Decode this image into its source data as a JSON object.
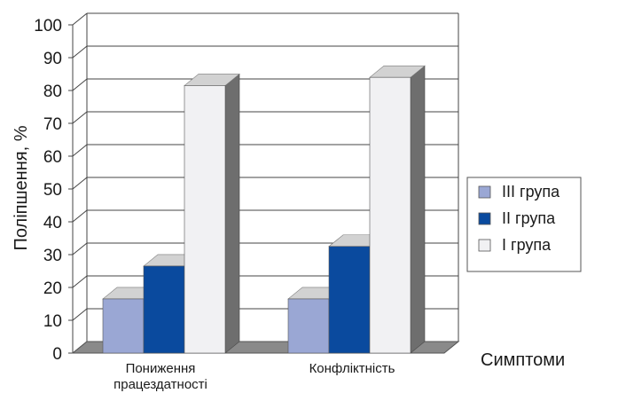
{
  "chart_data": {
    "type": "bar",
    "ylabel": "Поліпшення, %",
    "xlabel": "Симптоми",
    "ylim": [
      0,
      100
    ],
    "yticks": [
      "0",
      "10",
      "20",
      "30",
      "40",
      "50",
      "60",
      "70",
      "80",
      "90",
      "100"
    ],
    "categories": [
      [
        "Пониження",
        "працездатності"
      ],
      [
        "Конфліктність"
      ]
    ],
    "series": [
      {
        "name": "III група",
        "color": "#9aa7d4",
        "values": [
          16.5,
          16.5
        ]
      },
      {
        "name": "II група",
        "color": "#0a4a9e",
        "values": [
          26.5,
          32.5
        ]
      },
      {
        "name": "I група",
        "color": "#f1f1f3",
        "values": [
          81.5,
          84
        ]
      }
    ],
    "legend_position": "right",
    "grid": true
  }
}
